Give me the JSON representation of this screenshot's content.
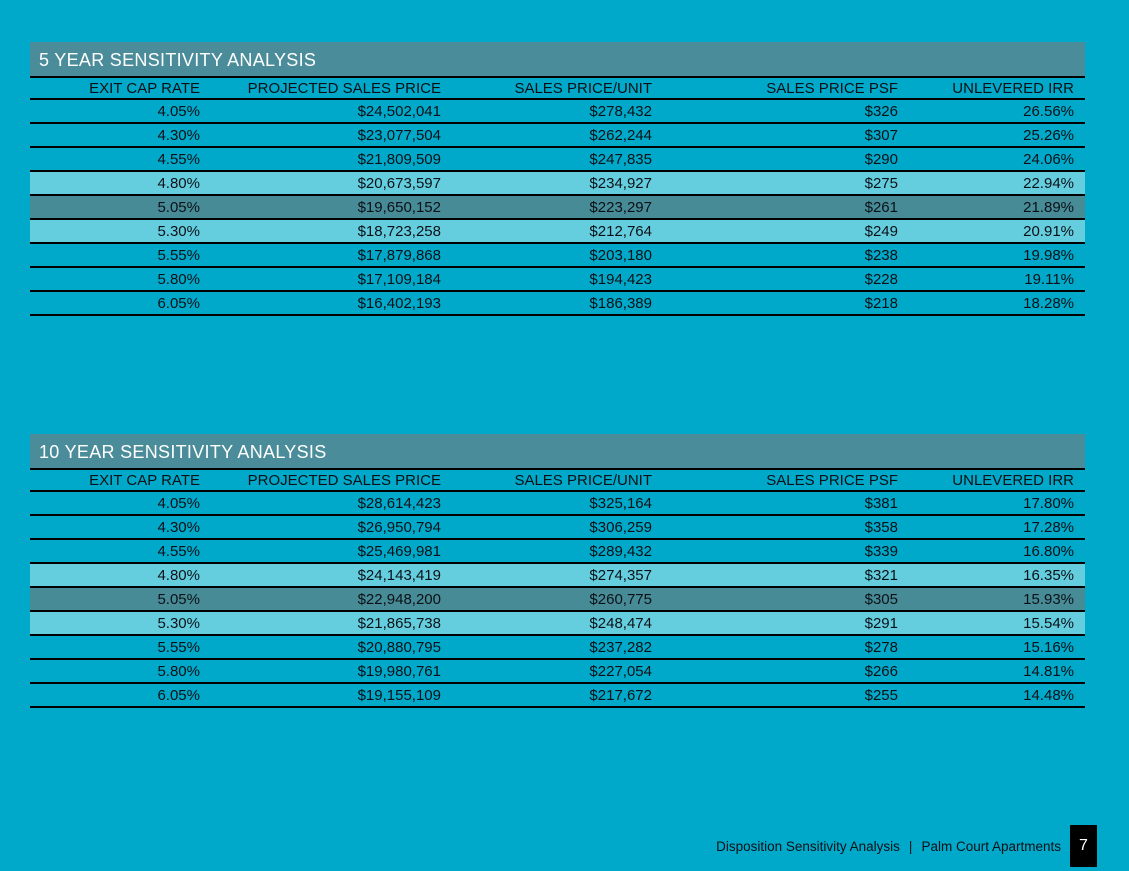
{
  "page": {
    "background_color": "#00a9c9",
    "title_bar_color": "#4a8c99",
    "highlight_light_color": "#64cedf",
    "highlight_dark_color": "#478b97",
    "line_color": "#000000",
    "text_color": "#0c1016",
    "title_text_color": "#ffffff"
  },
  "columns": [
    "EXIT CAP RATE",
    "PROJECTED SALES PRICE",
    "SALES PRICE/UNIT",
    "SALES PRICE PSF",
    "UNLEVERED IRR"
  ],
  "tables": [
    {
      "title": "5 YEAR SENSITIVITY ANALYSIS",
      "rows": [
        {
          "cells": [
            "4.05%",
            "$24,502,041",
            "$278,432",
            "$326",
            "26.56%"
          ],
          "highlight": "none"
        },
        {
          "cells": [
            "4.30%",
            "$23,077,504",
            "$262,244",
            "$307",
            "25.26%"
          ],
          "highlight": "none"
        },
        {
          "cells": [
            "4.55%",
            "$21,809,509",
            "$247,835",
            "$290",
            "24.06%"
          ],
          "highlight": "none"
        },
        {
          "cells": [
            "4.80%",
            "$20,673,597",
            "$234,927",
            "$275",
            "22.94%"
          ],
          "highlight": "light"
        },
        {
          "cells": [
            "5.05%",
            "$19,650,152",
            "$223,297",
            "$261",
            "21.89%"
          ],
          "highlight": "dark"
        },
        {
          "cells": [
            "5.30%",
            "$18,723,258",
            "$212,764",
            "$249",
            "20.91%"
          ],
          "highlight": "light"
        },
        {
          "cells": [
            "5.55%",
            "$17,879,868",
            "$203,180",
            "$238",
            "19.98%"
          ],
          "highlight": "none"
        },
        {
          "cells": [
            "5.80%",
            "$17,109,184",
            "$194,423",
            "$228",
            "19.11%"
          ],
          "highlight": "none"
        },
        {
          "cells": [
            "6.05%",
            "$16,402,193",
            "$186,389",
            "$218",
            "18.28%"
          ],
          "highlight": "none"
        }
      ]
    },
    {
      "title": "10 YEAR SENSITIVITY ANALYSIS",
      "rows": [
        {
          "cells": [
            "4.05%",
            "$28,614,423",
            "$325,164",
            "$381",
            "17.80%"
          ],
          "highlight": "none"
        },
        {
          "cells": [
            "4.30%",
            "$26,950,794",
            "$306,259",
            "$358",
            "17.28%"
          ],
          "highlight": "none"
        },
        {
          "cells": [
            "4.55%",
            "$25,469,981",
            "$289,432",
            "$339",
            "16.80%"
          ],
          "highlight": "none"
        },
        {
          "cells": [
            "4.80%",
            "$24,143,419",
            "$274,357",
            "$321",
            "16.35%"
          ],
          "highlight": "light"
        },
        {
          "cells": [
            "5.05%",
            "$22,948,200",
            "$260,775",
            "$305",
            "15.93%"
          ],
          "highlight": "dark"
        },
        {
          "cells": [
            "5.30%",
            "$21,865,738",
            "$248,474",
            "$291",
            "15.54%"
          ],
          "highlight": "light"
        },
        {
          "cells": [
            "5.55%",
            "$20,880,795",
            "$237,282",
            "$278",
            "15.16%"
          ],
          "highlight": "none"
        },
        {
          "cells": [
            "5.80%",
            "$19,980,761",
            "$227,054",
            "$266",
            "14.81%"
          ],
          "highlight": "none"
        },
        {
          "cells": [
            "6.05%",
            "$19,155,109",
            "$217,672",
            "$255",
            "14.48%"
          ],
          "highlight": "none"
        }
      ]
    }
  ],
  "footer": {
    "document_title": "Disposition Sensitivity Analysis",
    "separator": "|",
    "property_name": "Palm Court Apartments",
    "page_number": "7"
  }
}
